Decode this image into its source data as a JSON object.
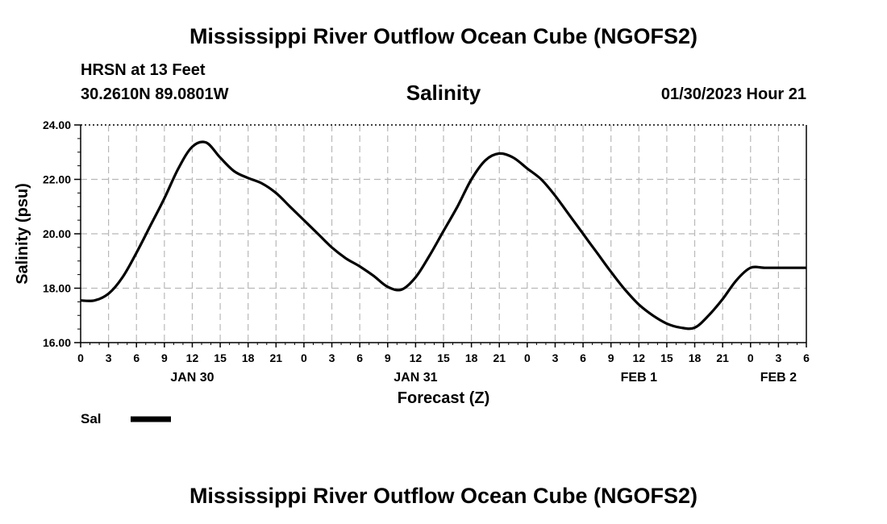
{
  "header": {
    "title_top": "Mississippi River Outflow Ocean Cube (NGOFS2)",
    "title_bottom": "Mississippi River Outflow Ocean Cube (NGOFS2)",
    "station": "HRSN at 13 Feet",
    "coords": "30.2610N  89.0801W",
    "datetime": "01/30/2023 Hour 21"
  },
  "chart_data": {
    "type": "line",
    "title": "Salinity",
    "xlabel": "Forecast (Z)",
    "ylabel": "Salinity (psu)",
    "ylim": [
      16,
      24
    ],
    "xlim_hours": [
      0,
      78
    ],
    "y_ticks": [
      "16.00",
      "18.00",
      "20.00",
      "22.00",
      "24.00"
    ],
    "x_tick_labels": [
      "0",
      "3",
      "6",
      "9",
      "12",
      "15",
      "18",
      "21",
      "0",
      "3",
      "6",
      "9",
      "12",
      "15",
      "18",
      "21",
      "0",
      "3",
      "6",
      "9",
      "12",
      "15",
      "18",
      "21",
      "0",
      "3",
      "6"
    ],
    "day_labels": [
      {
        "label": "JAN 30",
        "hour": 12
      },
      {
        "label": "JAN 31",
        "hour": 36
      },
      {
        "label": "FEB 1",
        "hour": 60
      },
      {
        "label": "FEB 2",
        "hour": 75
      }
    ],
    "grid": true,
    "legend_placement": "bottom-left",
    "series": [
      {
        "name": "Sal",
        "color": "#000000",
        "x_hours": [
          0,
          1.5,
          3,
          4.5,
          6,
          7.5,
          9,
          10.5,
          12,
          13.5,
          15,
          16.5,
          18,
          19.5,
          21,
          22.5,
          24,
          25.5,
          27,
          28.5,
          30,
          31.5,
          33,
          34.5,
          36,
          37.5,
          39,
          40.5,
          42,
          43.5,
          45,
          46.5,
          48,
          49.5,
          51,
          52.5,
          54,
          55.5,
          57,
          58.5,
          60,
          61.5,
          63,
          64.5,
          66,
          67.5,
          69,
          70.5,
          72,
          73.5,
          75,
          76.5,
          78
        ],
        "values": [
          17.55,
          17.55,
          17.8,
          18.4,
          19.3,
          20.3,
          21.3,
          22.4,
          23.2,
          23.35,
          22.8,
          22.3,
          22.05,
          21.85,
          21.5,
          21.0,
          20.5,
          20.0,
          19.5,
          19.1,
          18.8,
          18.45,
          18.05,
          17.95,
          18.4,
          19.2,
          20.1,
          21.0,
          22.0,
          22.7,
          22.95,
          22.8,
          22.4,
          22.0,
          21.4,
          20.7,
          20.0,
          19.3,
          18.6,
          17.95,
          17.4,
          17.0,
          16.7,
          16.55,
          16.55,
          17.0,
          17.6,
          18.3,
          18.75,
          18.75,
          18.75,
          18.75,
          18.75
        ]
      }
    ]
  }
}
